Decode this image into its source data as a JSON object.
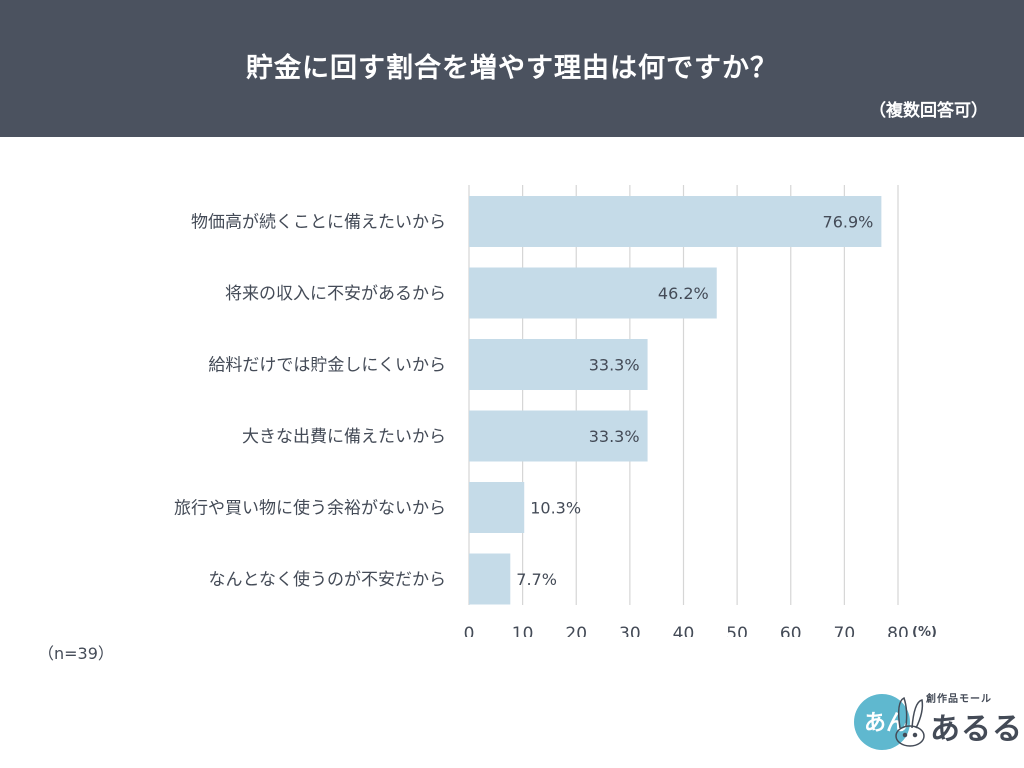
{
  "header": {
    "title": "貯金に回す割合を増やす理由は何ですか？",
    "subtitle": "（複数回答可）"
  },
  "note": "（n=39）",
  "logo": {
    "sub": "創作品モール",
    "main": "あるる",
    "mark_text": "あん"
  },
  "colors": {
    "header_bg": "#4b525f",
    "bar": "#c5dbe8",
    "grid": "#d6d6d6",
    "text": "#444b57",
    "logo_circle": "#5fb8cf"
  },
  "chart_data": {
    "type": "bar",
    "orientation": "horizontal",
    "categories": [
      "物価高が続くことに備えたいから",
      "将来の収入に不安があるから",
      "給料だけでは貯金しにくいから",
      "大きな出費に備えたいから",
      "旅行や買い物に使う余裕がないから",
      "なんとなく使うのが不安だから"
    ],
    "values": [
      76.9,
      46.2,
      33.3,
      33.3,
      10.3,
      7.7
    ],
    "value_labels": [
      "76.9%",
      "46.2%",
      "33.3%",
      "33.3%",
      "10.3%",
      "7.7%"
    ],
    "xlim": [
      0,
      80
    ],
    "xticks": [
      "0",
      "10",
      "20",
      "30",
      "40",
      "50",
      "60",
      "70",
      "80"
    ],
    "unit": "(%)",
    "grid": true
  }
}
